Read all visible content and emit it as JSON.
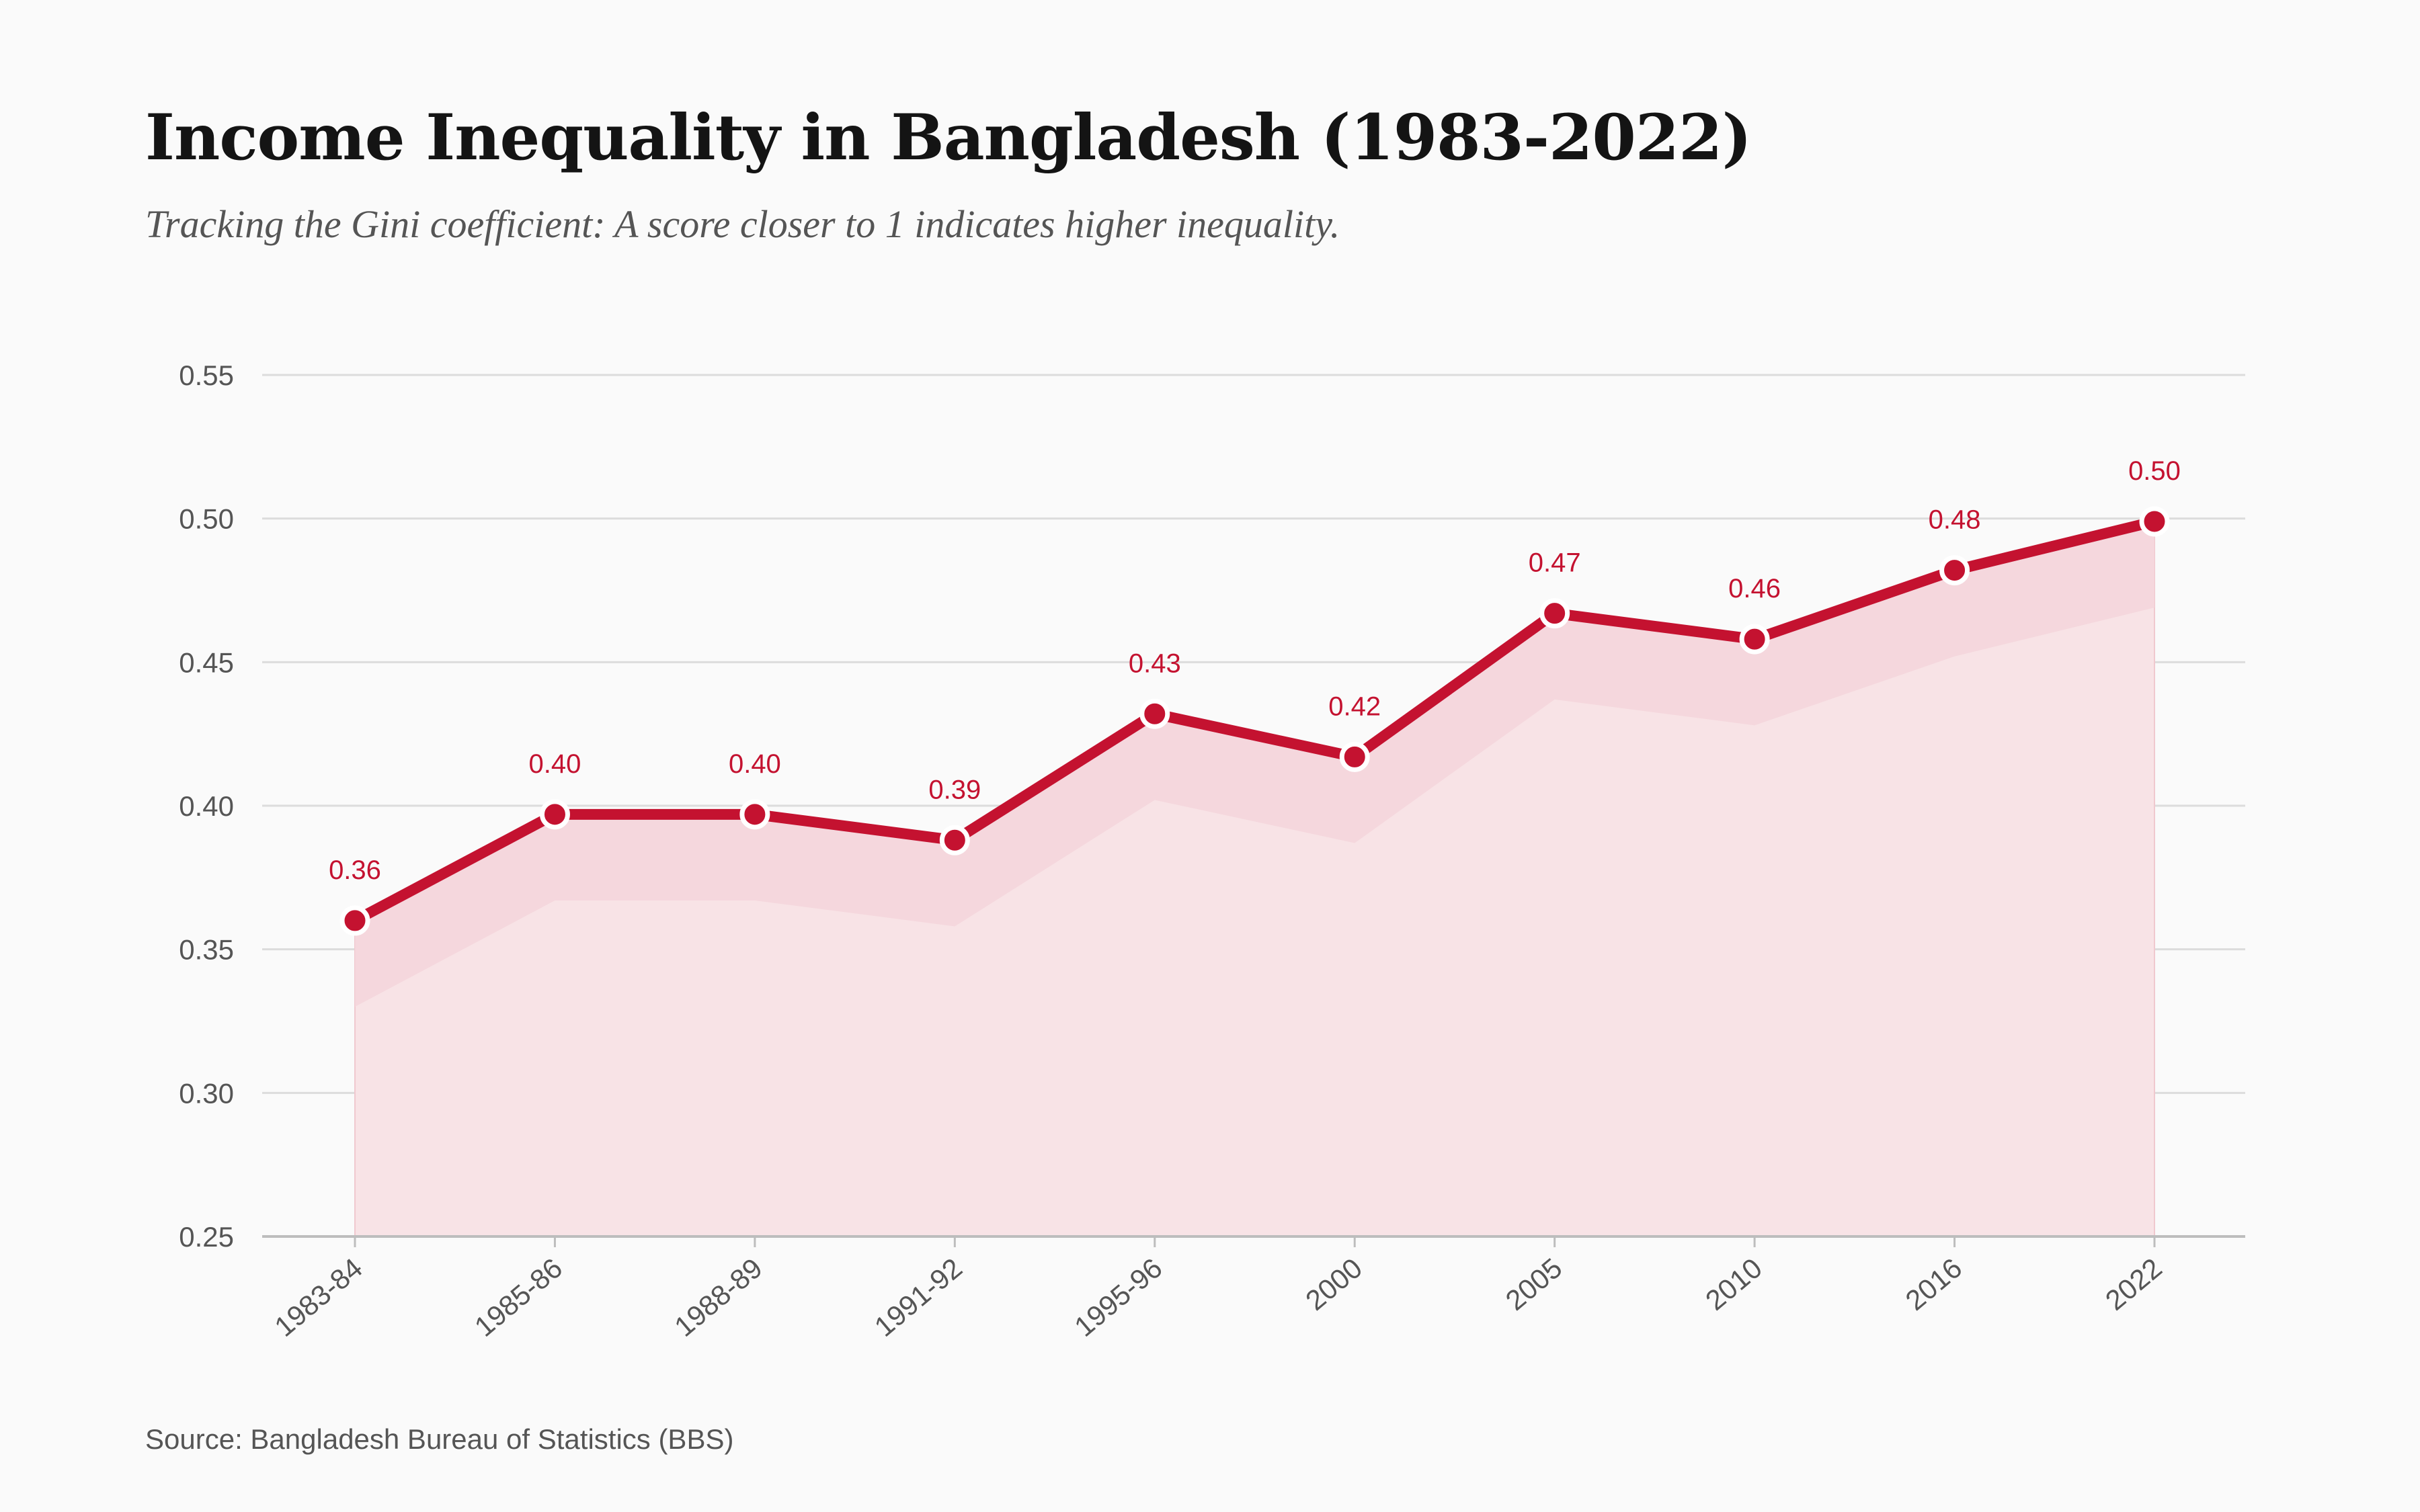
{
  "header": {
    "title": "Income Inequality in Bangladesh (1983-2022)",
    "subtitle": "Tracking the Gini coefficient: A score closer to 1 indicates higher inequality."
  },
  "footer": {
    "source": "Source: Bangladesh Bureau of Statistics (BBS)"
  },
  "colors": {
    "line": "#c41230",
    "band": "#f5d5da",
    "area": "#f8e3e6",
    "grid": "#dcdcdc",
    "axis": "#bdbdbd",
    "background": "#fafafa"
  },
  "chart_data": {
    "type": "line",
    "title": "Income Inequality in Bangladesh (1983-2022)",
    "subtitle": "Tracking the Gini coefficient: A score closer to 1 indicates higher inequality.",
    "xlabel": "",
    "ylabel": "",
    "categories": [
      "1983-84",
      "1985-86",
      "1988-89",
      "1991-92",
      "1995-96",
      "2000",
      "2005",
      "2010",
      "2016",
      "2022"
    ],
    "values": [
      0.36,
      0.397,
      0.397,
      0.388,
      0.432,
      0.417,
      0.467,
      0.458,
      0.482,
      0.499
    ],
    "data_labels": [
      "0.36",
      "0.40",
      "0.40",
      "0.39",
      "0.43",
      "0.42",
      "0.47",
      "0.46",
      "0.48",
      "0.50"
    ],
    "ylim": [
      0.25,
      0.55
    ],
    "yticks": [
      "0.25",
      "0.30",
      "0.35",
      "0.40",
      "0.45",
      "0.50",
      "0.55"
    ],
    "band_offset": 0.03,
    "grid": true,
    "legend": "none",
    "area_fill": true
  }
}
